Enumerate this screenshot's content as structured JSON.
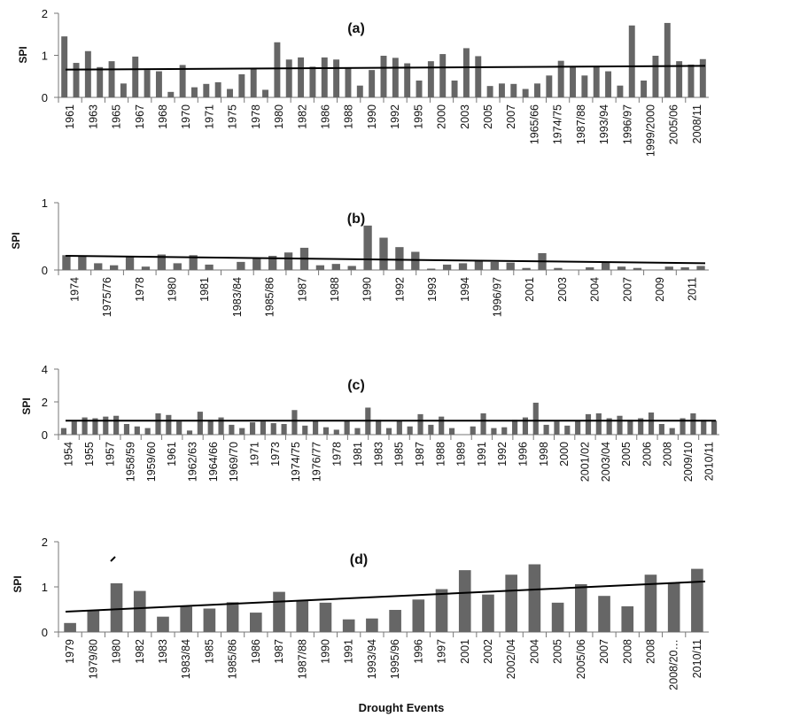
{
  "figure": {
    "x_axis_label": "Drought Events"
  },
  "chart_data": [
    {
      "type": "bar",
      "title": "(a)",
      "ylabel": "SPI",
      "ylim": [
        0,
        2
      ],
      "yticks": [
        0,
        1,
        2
      ],
      "trendline": [
        0.66,
        0.75
      ],
      "tick_labels": [
        "1961",
        "1963",
        "1965",
        "1967",
        "1968",
        "1970",
        "1971",
        "1975",
        "1978",
        "1980",
        "1982",
        "1986",
        "1988",
        "1990",
        "1992",
        "1995",
        "2000",
        "2003",
        "2005",
        "2007",
        "1965/66",
        "1974/75",
        "1987/88",
        "1993/94",
        "1996/97",
        "1999/2000",
        "2005/06",
        "2008/11"
      ],
      "values": [
        1.45,
        0.82,
        1.1,
        0.72,
        0.86,
        0.33,
        0.97,
        0.65,
        0.62,
        0.13,
        0.77,
        0.24,
        0.32,
        0.36,
        0.2,
        0.55,
        0.68,
        0.18,
        1.31,
        0.9,
        0.95,
        0.73,
        0.95,
        0.9,
        0.7,
        0.28,
        0.65,
        0.99,
        0.94,
        0.81,
        0.4,
        0.86,
        1.03,
        0.4,
        1.17,
        0.98,
        0.27,
        0.33,
        0.32,
        0.2,
        0.33,
        0.52,
        0.87,
        0.73,
        0.52,
        0.73,
        0.62,
        0.28,
        1.71,
        0.4,
        0.99,
        1.77,
        0.86,
        0.78,
        0.91
      ]
    },
    {
      "type": "bar",
      "title": "(b)",
      "ylabel": "SPI",
      "ylim": [
        0,
        1
      ],
      "yticks": [
        0,
        1
      ],
      "trendline": [
        0.21,
        0.1
      ],
      "tick_labels": [
        "1974",
        "1975/76",
        "1978",
        "1980",
        "1981",
        "1983/84",
        "1985/86",
        "1987",
        "1988",
        "1990",
        "1992",
        "1993",
        "1994",
        "1996/97",
        "2001",
        "2003",
        "2004",
        "2007",
        "2009",
        "2011"
      ],
      "values": [
        0.22,
        0.2,
        0.1,
        0.07,
        0.21,
        0.05,
        0.23,
        0.1,
        0.22,
        0.08,
        0.0,
        0.12,
        0.18,
        0.21,
        0.26,
        0.33,
        0.07,
        0.09,
        0.06,
        0.66,
        0.48,
        0.34,
        0.27,
        0.02,
        0.08,
        0.1,
        0.13,
        0.12,
        0.11,
        0.03,
        0.25,
        0.03,
        0.0,
        0.04,
        0.11,
        0.05,
        0.03,
        0.0,
        0.05,
        0.04,
        0.06
      ]
    },
    {
      "type": "bar",
      "title": "(c)",
      "ylabel": "SPI",
      "ylim": [
        0,
        4
      ],
      "yticks": [
        0,
        2,
        4
      ],
      "trendline": [
        0.85,
        0.85
      ],
      "tick_labels": [
        "1954",
        "1955",
        "1957",
        "1958/59",
        "1959/60",
        "1961",
        "1962/63",
        "1964/66",
        "1969/70",
        "1971",
        "1973",
        "1974/75",
        "1976/77",
        "1978",
        "1981",
        "1983",
        "1985",
        "1987",
        "1988",
        "1989",
        "1991",
        "1992",
        "1996",
        "1998",
        "2000",
        "2001/02",
        "2003/04",
        "2005",
        "2006",
        "2008",
        "2009/10",
        "2010/11"
      ],
      "values": [
        0.4,
        0.8,
        1.05,
        1.0,
        1.1,
        1.15,
        0.65,
        0.5,
        0.4,
        1.3,
        1.2,
        0.8,
        0.25,
        1.4,
        0.9,
        1.05,
        0.6,
        0.4,
        0.75,
        0.8,
        0.7,
        0.65,
        1.5,
        0.55,
        0.85,
        0.45,
        0.3,
        0.85,
        0.4,
        1.65,
        0.9,
        0.4,
        0.85,
        0.5,
        1.25,
        0.6,
        1.1,
        0.4,
        0.0,
        0.5,
        1.3,
        0.4,
        0.45,
        0.9,
        1.05,
        1.95,
        0.6,
        0.8,
        0.55,
        0.85,
        1.25,
        1.3,
        1.0,
        1.15,
        0.9,
        1.0,
        1.35,
        0.65,
        0.4,
        1.0,
        1.3,
        0.9,
        0.85
      ]
    },
    {
      "type": "bar",
      "title": "(d)",
      "ylabel": "SPI",
      "ylim": [
        0,
        2
      ],
      "yticks": [
        0,
        1,
        2
      ],
      "trendline": [
        0.45,
        1.12
      ],
      "tick_labels": [
        "1979",
        "1979/80",
        "1980",
        "1982",
        "1983",
        "1983/84",
        "1985",
        "1985/86",
        "1986",
        "1987",
        "1987/88",
        "1990",
        "1991",
        "1993/94",
        "1995/96",
        "1996",
        "1997",
        "2001",
        "2002",
        "2002/04",
        "2004",
        "2005",
        "2005/06",
        "2007",
        "2008",
        "2008",
        "2008/20…",
        "2010/11"
      ],
      "values": [
        0.2,
        0.48,
        1.08,
        0.91,
        0.34,
        0.56,
        0.52,
        0.66,
        0.43,
        0.89,
        0.7,
        0.65,
        0.28,
        0.3,
        0.49,
        0.72,
        0.95,
        1.37,
        0.83,
        1.27,
        1.5,
        0.65,
        1.06,
        0.8,
        0.57,
        1.27,
        1.1,
        1.4
      ]
    }
  ]
}
